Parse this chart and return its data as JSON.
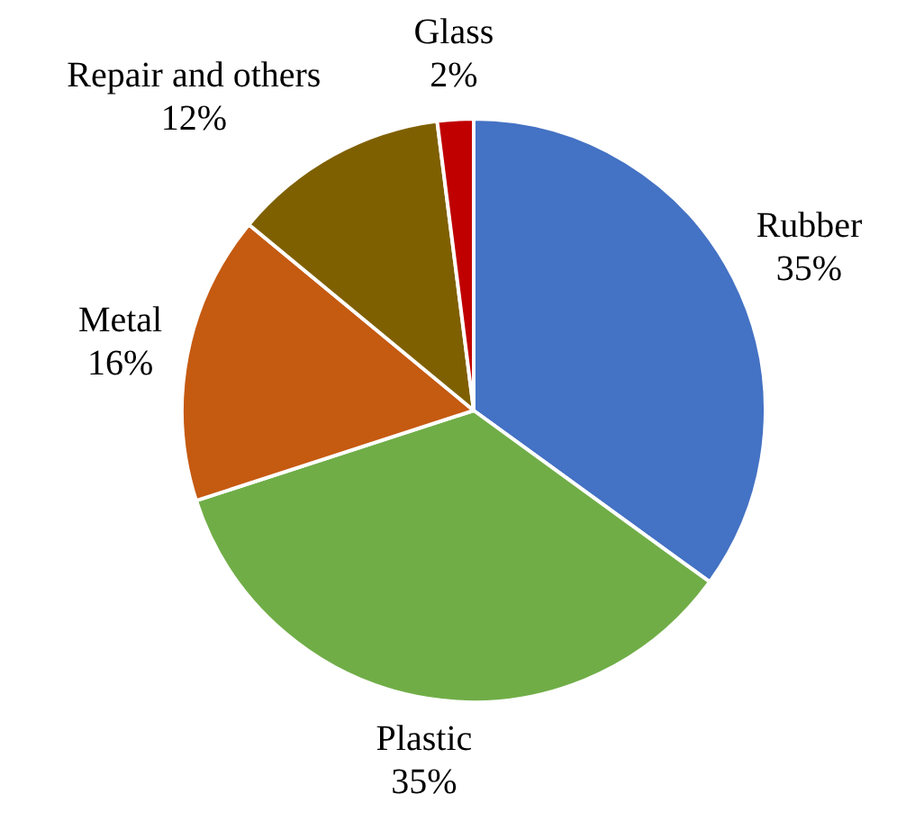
{
  "chart_data": {
    "type": "pie",
    "categories": [
      "Rubber",
      "Plastic",
      "Metal",
      "Repair and others",
      "Glass"
    ],
    "values": [
      35,
      35,
      16,
      12,
      2
    ],
    "colors": [
      "#4472c4",
      "#70ad47",
      "#c55a11",
      "#7f6000",
      "#c00000"
    ],
    "value_labels": [
      "35%",
      "35%",
      "16%",
      "12%",
      "2%"
    ],
    "legend": false
  }
}
